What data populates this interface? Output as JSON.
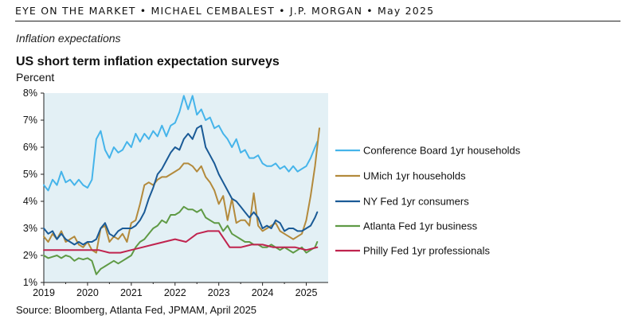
{
  "header": {
    "masthead": "EYE ON THE MARKET • MICHAEL CEMBALEST • J.P. MORGAN • May 2025",
    "section": "Inflation expectations"
  },
  "chart_data": {
    "type": "line",
    "title": "US short term inflation expectation surveys",
    "ylabel": "Percent",
    "source": "Source: Bloomberg, Atlanta Fed, JPMAM, April 2025",
    "ylim": [
      1,
      8
    ],
    "xlim": [
      2019.0,
      2025.5
    ],
    "yticks": [
      1,
      2,
      3,
      4,
      5,
      6,
      7,
      8
    ],
    "ytick_labels": [
      "1%",
      "2%",
      "3%",
      "4%",
      "5%",
      "6%",
      "7%",
      "8%"
    ],
    "xticks": [
      2019,
      2020,
      2021,
      2022,
      2023,
      2024,
      2025
    ],
    "xtick_labels": [
      "2019",
      "2020",
      "2021",
      "2022",
      "2023",
      "2024",
      "2025"
    ],
    "plot_background": "#e3f0f5",
    "legend_position": "right",
    "series": [
      {
        "name": "Conference Board 1yr households",
        "color": "#45b4ea",
        "x": [
          2019.0,
          2019.1,
          2019.2,
          2019.3,
          2019.4,
          2019.5,
          2019.6,
          2019.7,
          2019.8,
          2019.9,
          2020.0,
          2020.1,
          2020.2,
          2020.3,
          2020.4,
          2020.5,
          2020.6,
          2020.7,
          2020.8,
          2020.9,
          2021.0,
          2021.1,
          2021.2,
          2021.3,
          2021.4,
          2021.5,
          2021.6,
          2021.7,
          2021.8,
          2021.9,
          2022.0,
          2022.1,
          2022.2,
          2022.3,
          2022.4,
          2022.5,
          2022.6,
          2022.7,
          2022.8,
          2022.9,
          2023.0,
          2023.1,
          2023.2,
          2023.3,
          2023.4,
          2023.5,
          2023.6,
          2023.7,
          2023.8,
          2023.9,
          2024.0,
          2024.1,
          2024.2,
          2024.3,
          2024.4,
          2024.5,
          2024.6,
          2024.7,
          2024.8,
          2024.9,
          2025.0,
          2025.1,
          2025.2,
          2025.25
        ],
        "y": [
          4.6,
          4.4,
          4.8,
          4.6,
          5.1,
          4.7,
          4.8,
          4.6,
          4.8,
          4.6,
          4.5,
          4.8,
          6.3,
          6.6,
          5.9,
          5.6,
          6.0,
          5.8,
          5.9,
          6.2,
          6.0,
          6.5,
          6.2,
          6.5,
          6.3,
          6.6,
          6.4,
          6.8,
          6.4,
          6.8,
          6.9,
          7.3,
          7.9,
          7.4,
          7.9,
          7.2,
          7.4,
          7.0,
          7.1,
          6.7,
          6.8,
          6.5,
          6.3,
          6.0,
          6.3,
          5.8,
          5.9,
          5.6,
          5.6,
          5.7,
          5.4,
          5.3,
          5.3,
          5.4,
          5.2,
          5.3,
          5.1,
          5.3,
          5.1,
          5.2,
          5.3,
          5.6,
          6.0,
          6.2
        ]
      },
      {
        "name": "UMich 1yr households",
        "color": "#b38a3c",
        "x": [
          2019.0,
          2019.1,
          2019.2,
          2019.3,
          2019.4,
          2019.5,
          2019.6,
          2019.7,
          2019.8,
          2019.9,
          2020.0,
          2020.1,
          2020.2,
          2020.3,
          2020.4,
          2020.5,
          2020.6,
          2020.7,
          2020.8,
          2020.9,
          2021.0,
          2021.1,
          2021.2,
          2021.3,
          2021.4,
          2021.5,
          2021.6,
          2021.7,
          2021.8,
          2021.9,
          2022.0,
          2022.1,
          2022.2,
          2022.3,
          2022.4,
          2022.5,
          2022.6,
          2022.7,
          2022.8,
          2022.9,
          2023.0,
          2023.1,
          2023.2,
          2023.3,
          2023.4,
          2023.5,
          2023.6,
          2023.7,
          2023.8,
          2023.9,
          2024.0,
          2024.1,
          2024.2,
          2024.3,
          2024.4,
          2024.5,
          2024.6,
          2024.7,
          2024.8,
          2024.9,
          2025.0,
          2025.1,
          2025.2,
          2025.3
        ],
        "y": [
          2.7,
          2.5,
          2.8,
          2.6,
          2.9,
          2.5,
          2.6,
          2.7,
          2.4,
          2.3,
          2.5,
          2.2,
          2.1,
          3.0,
          3.1,
          2.5,
          2.7,
          2.6,
          2.8,
          2.5,
          3.2,
          3.3,
          3.9,
          4.6,
          4.7,
          4.6,
          4.8,
          4.9,
          4.9,
          5.0,
          5.1,
          5.2,
          5.4,
          5.4,
          5.3,
          5.1,
          5.3,
          4.9,
          4.7,
          4.4,
          3.9,
          4.2,
          3.3,
          4.1,
          3.2,
          3.3,
          3.3,
          3.1,
          4.3,
          3.1,
          2.9,
          3.0,
          3.1,
          3.2,
          2.9,
          2.8,
          2.7,
          2.6,
          2.7,
          2.8,
          3.3,
          4.2,
          5.3,
          6.7
        ]
      },
      {
        "name": "NY Fed 1yr consumers",
        "color": "#1a5a96",
        "x": [
          2019.0,
          2019.1,
          2019.2,
          2019.3,
          2019.4,
          2019.5,
          2019.6,
          2019.7,
          2019.8,
          2019.9,
          2020.0,
          2020.1,
          2020.2,
          2020.3,
          2020.4,
          2020.5,
          2020.6,
          2020.7,
          2020.8,
          2020.9,
          2021.0,
          2021.1,
          2021.2,
          2021.3,
          2021.4,
          2021.5,
          2021.6,
          2021.7,
          2021.8,
          2021.9,
          2022.0,
          2022.1,
          2022.2,
          2022.3,
          2022.4,
          2022.5,
          2022.6,
          2022.7,
          2022.8,
          2022.9,
          2023.0,
          2023.1,
          2023.2,
          2023.3,
          2023.4,
          2023.5,
          2023.6,
          2023.7,
          2023.8,
          2023.9,
          2024.0,
          2024.1,
          2024.2,
          2024.3,
          2024.4,
          2024.5,
          2024.6,
          2024.7,
          2024.8,
          2024.9,
          2025.0,
          2025.1,
          2025.2,
          2025.25
        ],
        "y": [
          3.0,
          2.8,
          2.9,
          2.6,
          2.8,
          2.6,
          2.5,
          2.4,
          2.5,
          2.4,
          2.5,
          2.5,
          2.6,
          3.0,
          3.2,
          2.8,
          2.7,
          2.9,
          3.0,
          3.0,
          3.0,
          3.1,
          3.3,
          3.6,
          4.1,
          4.5,
          5.0,
          5.2,
          5.5,
          5.8,
          6.0,
          5.9,
          6.3,
          6.5,
          6.3,
          6.7,
          6.8,
          6.0,
          5.7,
          5.4,
          5.0,
          4.7,
          4.4,
          4.1,
          4.0,
          3.8,
          3.6,
          3.4,
          3.6,
          3.4,
          3.0,
          3.1,
          3.0,
          3.3,
          3.2,
          2.9,
          3.0,
          3.0,
          2.9,
          2.9,
          3.0,
          3.1,
          3.4,
          3.6
        ]
      },
      {
        "name": "Atlanta Fed 1yr business",
        "color": "#5f9a45",
        "x": [
          2019.0,
          2019.1,
          2019.2,
          2019.3,
          2019.4,
          2019.5,
          2019.6,
          2019.7,
          2019.8,
          2019.9,
          2020.0,
          2020.1,
          2020.2,
          2020.3,
          2020.4,
          2020.5,
          2020.6,
          2020.7,
          2020.8,
          2020.9,
          2021.0,
          2021.1,
          2021.2,
          2021.3,
          2021.4,
          2021.5,
          2021.6,
          2021.7,
          2021.8,
          2021.9,
          2022.0,
          2022.1,
          2022.2,
          2022.3,
          2022.4,
          2022.5,
          2022.6,
          2022.7,
          2022.8,
          2022.9,
          2023.0,
          2023.1,
          2023.2,
          2023.3,
          2023.4,
          2023.5,
          2023.6,
          2023.7,
          2023.8,
          2023.9,
          2024.0,
          2024.1,
          2024.2,
          2024.3,
          2024.4,
          2024.5,
          2024.6,
          2024.7,
          2024.8,
          2024.9,
          2025.0,
          2025.1,
          2025.2,
          2025.25
        ],
        "y": [
          2.0,
          1.9,
          1.95,
          2.0,
          1.9,
          2.0,
          1.95,
          1.8,
          1.9,
          1.85,
          1.9,
          1.8,
          1.3,
          1.5,
          1.6,
          1.7,
          1.8,
          1.7,
          1.8,
          1.9,
          2.0,
          2.3,
          2.5,
          2.6,
          2.8,
          3.0,
          3.1,
          3.3,
          3.2,
          3.5,
          3.5,
          3.6,
          3.8,
          3.7,
          3.7,
          3.6,
          3.7,
          3.4,
          3.3,
          3.2,
          3.2,
          2.9,
          3.1,
          2.8,
          2.7,
          2.6,
          2.5,
          2.5,
          2.4,
          2.4,
          2.3,
          2.3,
          2.4,
          2.3,
          2.2,
          2.3,
          2.2,
          2.1,
          2.2,
          2.3,
          2.1,
          2.2,
          2.3,
          2.5
        ]
      },
      {
        "name": "Philly Fed 1yr professionals",
        "color": "#c0234e",
        "x": [
          2019.0,
          2019.25,
          2019.5,
          2019.75,
          2020.0,
          2020.25,
          2020.5,
          2020.75,
          2021.0,
          2021.25,
          2021.5,
          2021.75,
          2022.0,
          2022.25,
          2022.5,
          2022.75,
          2023.0,
          2023.25,
          2023.5,
          2023.75,
          2024.0,
          2024.25,
          2024.5,
          2024.75,
          2025.0,
          2025.25
        ],
        "y": [
          2.2,
          2.2,
          2.2,
          2.2,
          2.2,
          2.2,
          2.1,
          2.1,
          2.2,
          2.3,
          2.4,
          2.5,
          2.6,
          2.5,
          2.8,
          2.9,
          2.9,
          2.3,
          2.3,
          2.4,
          2.4,
          2.3,
          2.3,
          2.3,
          2.2,
          2.3
        ]
      }
    ]
  }
}
